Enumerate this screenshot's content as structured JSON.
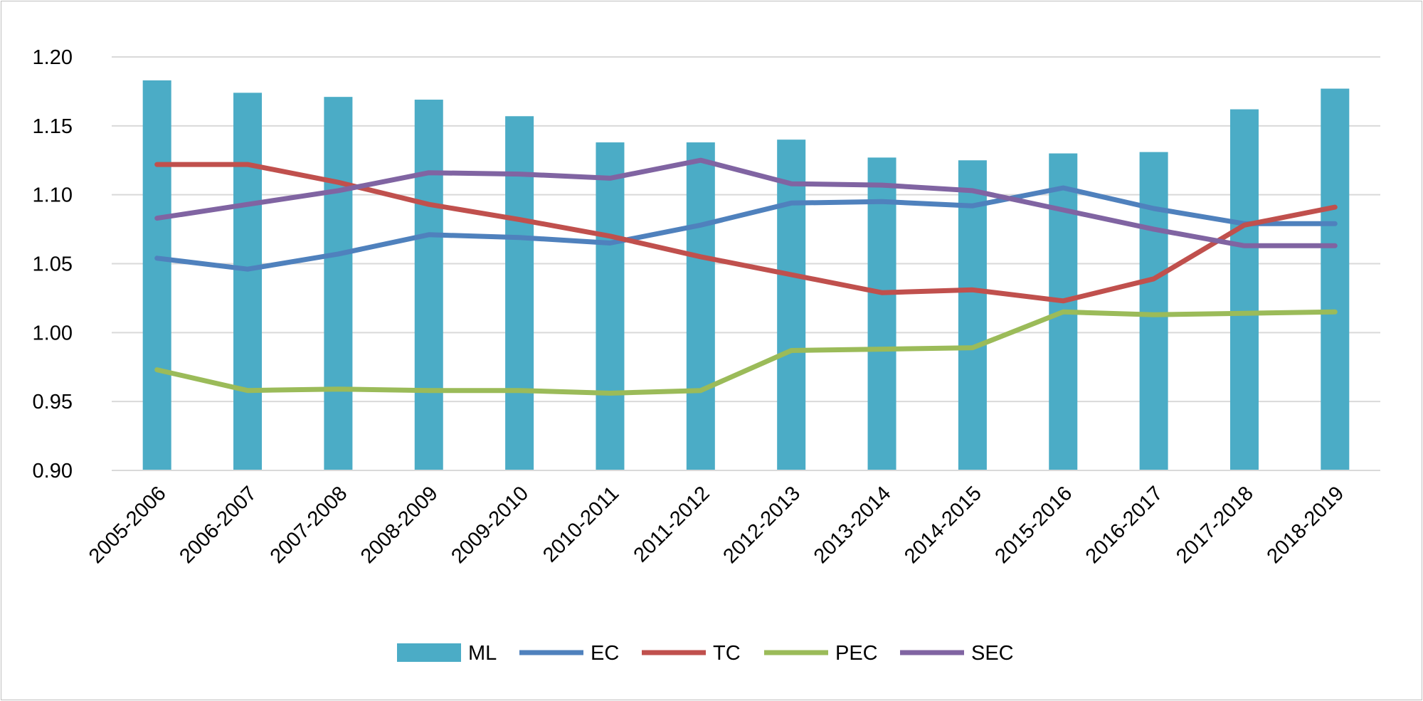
{
  "chart_data": {
    "type": "bar+line",
    "title": "",
    "xlabel": "",
    "ylabel": "",
    "ylim": [
      0.9,
      1.2
    ],
    "yticks": [
      "0.90",
      "0.95",
      "1.00",
      "1.05",
      "1.10",
      "1.15",
      "1.20"
    ],
    "grid": true,
    "legend_position": "bottom",
    "categories": [
      "2005-2006",
      "2006-2007",
      "2007-2008",
      "2008-2009",
      "2009-2010",
      "2010-2011",
      "2011-2012",
      "2012-2013",
      "2013-2014",
      "2014-2015",
      "2015-2016",
      "2016-2017",
      "2017-2018",
      "2018-2019"
    ],
    "series": [
      {
        "name": "ML",
        "kind": "bar",
        "color": "#4bacc6",
        "values": [
          1.183,
          1.174,
          1.171,
          1.169,
          1.157,
          1.138,
          1.138,
          1.14,
          1.127,
          1.125,
          1.13,
          1.131,
          1.162,
          1.177
        ]
      },
      {
        "name": "EC",
        "kind": "line",
        "color": "#4f81bd",
        "values": [
          1.054,
          1.046,
          1.057,
          1.071,
          1.069,
          1.065,
          1.078,
          1.094,
          1.095,
          1.092,
          1.105,
          1.09,
          1.079,
          1.079
        ]
      },
      {
        "name": "TC",
        "kind": "line",
        "color": "#c0504d",
        "values": [
          1.122,
          1.122,
          1.109,
          1.093,
          1.082,
          1.07,
          1.055,
          1.042,
          1.029,
          1.031,
          1.023,
          1.039,
          1.078,
          1.091
        ]
      },
      {
        "name": "PEC",
        "kind": "line",
        "color": "#9bbb59",
        "values": [
          0.973,
          0.958,
          0.959,
          0.958,
          0.958,
          0.956,
          0.958,
          0.987,
          0.988,
          0.989,
          1.015,
          1.013,
          1.014,
          1.015
        ]
      },
      {
        "name": "SEC",
        "kind": "line",
        "color": "#8064a2",
        "values": [
          1.083,
          1.093,
          1.103,
          1.116,
          1.115,
          1.112,
          1.125,
          1.108,
          1.107,
          1.103,
          1.089,
          1.075,
          1.063,
          1.063
        ]
      }
    ]
  }
}
